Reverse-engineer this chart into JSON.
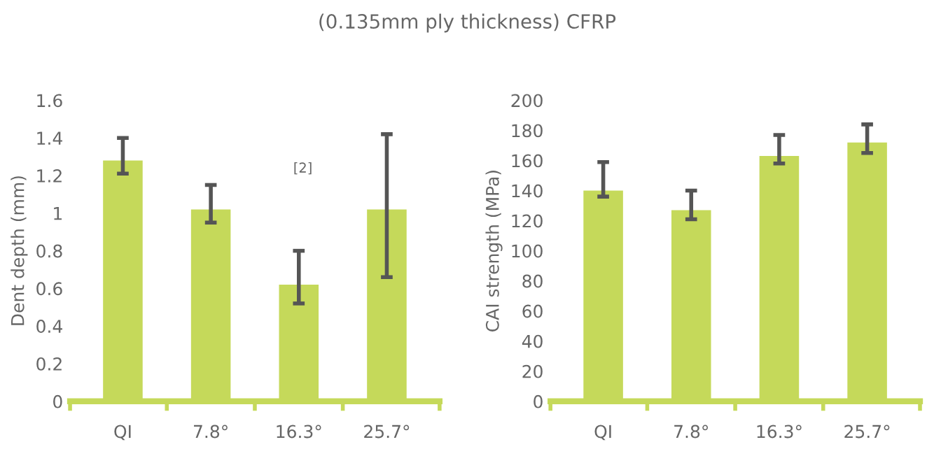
{
  "chart_data": [
    {
      "type": "bar",
      "title": "(0.135mm ply thickness) CFRP",
      "ylabel": "Dent depth (mm)",
      "categories": [
        "QI",
        "7.8°",
        "16.3°",
        "25.7°"
      ],
      "values": [
        1.28,
        1.02,
        0.62,
        1.02
      ],
      "errors": [
        [
          1.21,
          1.4
        ],
        [
          0.95,
          1.15
        ],
        [
          0.52,
          0.8
        ],
        [
          0.66,
          1.42
        ]
      ],
      "color": "#c5d95a",
      "ylim": [
        0,
        1.6
      ],
      "yticks": [
        0,
        0.2,
        0.4,
        0.6,
        0.8,
        1,
        1.2,
        1.4,
        1.6
      ],
      "annotations": [
        "[2]"
      ]
    },
    {
      "type": "bar",
      "ylabel": "CAI strength (MPa)",
      "categories": [
        "QI",
        "7.8°",
        "16.3°",
        "25.7°"
      ],
      "values": [
        140,
        127,
        163,
        172
      ],
      "errors": [
        [
          136,
          159
        ],
        [
          121,
          140
        ],
        [
          158,
          177
        ],
        [
          165,
          184
        ]
      ],
      "color": "#c5d95a",
      "ylim": [
        0,
        200
      ],
      "yticks": [
        0,
        20,
        40,
        60,
        80,
        100,
        120,
        140,
        160,
        180,
        200
      ]
    }
  ]
}
